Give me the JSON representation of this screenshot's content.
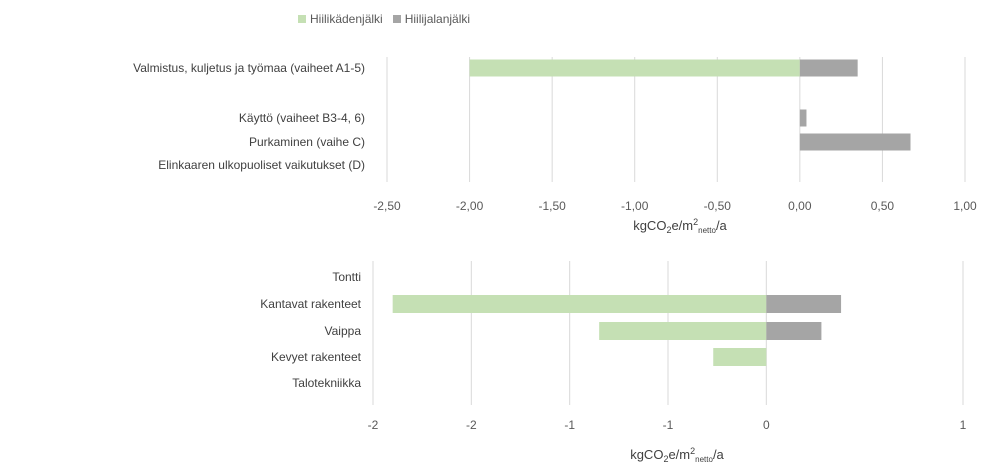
{
  "legend": [
    {
      "label": "Hiilikädenjälki",
      "color": "#c5e0b4"
    },
    {
      "label": "Hiilijalanjälki",
      "color": "#a5a5a5"
    }
  ],
  "chart_data": [
    {
      "type": "bar",
      "orientation": "horizontal",
      "stacked": true,
      "categories": [
        "Valmistus, kuljetus ja työmaa (vaiheet A1-5)",
        "",
        "Käyttö (vaiheet B3-4, 6)",
        "Purkaminen (vaihe C)",
        "Elinkaaren ulkopuoliset vaikutukset (D)"
      ],
      "series": [
        {
          "name": "Hiilikädenjälki",
          "values": [
            -2.0,
            0,
            0,
            0,
            0
          ]
        },
        {
          "name": "Hiilijalanjälki",
          "values": [
            0.35,
            0,
            0.04,
            0.67,
            0
          ]
        }
      ],
      "xlim": [
        -2.5,
        1.0
      ],
      "xticks": [
        "-2,50",
        "-2,00",
        "-1,50",
        "-1,00",
        "-0,50",
        "0,00",
        "0,50",
        "1,00"
      ],
      "xlabel": {
        "base": "kgCO",
        "sub1": "2",
        "mid": "e/m",
        "sup": "2",
        "sub2": "netto",
        "end": "/a"
      },
      "grid": true
    },
    {
      "type": "bar",
      "orientation": "horizontal",
      "stacked": true,
      "categories": [
        "Tontti",
        "Kantavat rakenteet",
        "Vaippa",
        "Kevyet rakenteet",
        "Talotekniikka"
      ],
      "series": [
        {
          "name": "Hiilikädenjälki",
          "values": [
            0,
            -1.9,
            -0.85,
            -0.27,
            0
          ]
        },
        {
          "name": "Hiilijalanjälki",
          "values": [
            0,
            0.38,
            0.28,
            0,
            0
          ]
        }
      ],
      "xlim": [
        -2,
        1
      ],
      "xticks": [
        "-2",
        "-2",
        "-1",
        "-1",
        "0",
        "1"
      ],
      "xtick_values": [
        -2,
        -1.5,
        -1,
        -0.5,
        0,
        1
      ],
      "xlabel": {
        "base": "kgCO",
        "sub1": "2",
        "mid": "e/m",
        "sup": "2",
        "sub2": "netto",
        "end": "/a"
      },
      "grid": true
    }
  ]
}
